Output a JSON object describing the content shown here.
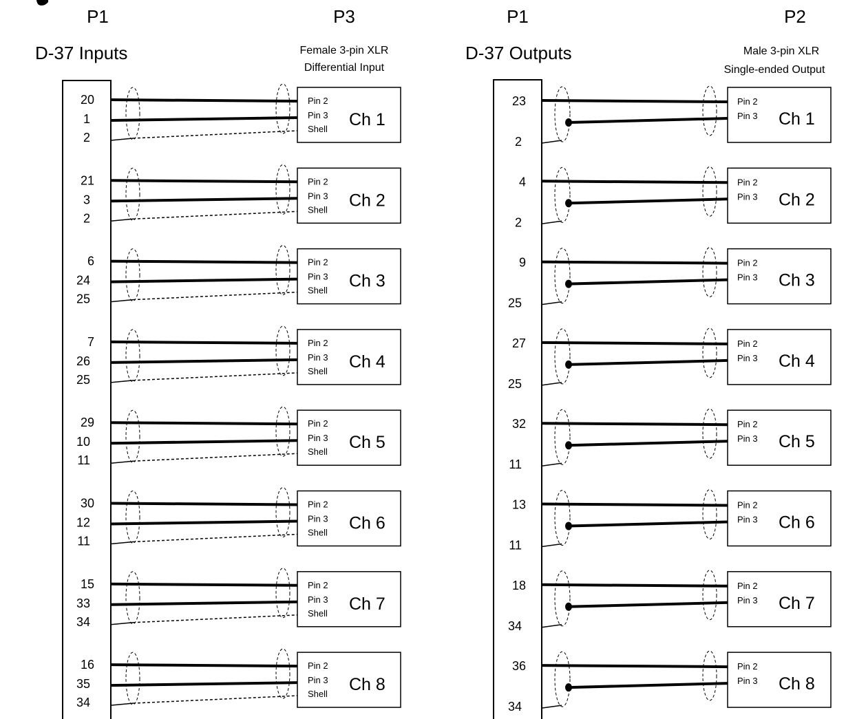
{
  "header": {
    "left_p1": "P1",
    "p3": "P3",
    "right_p1": "P1",
    "p2": "P2",
    "inputs_title": "D-37 Inputs",
    "outputs_title": "D-37 Outputs",
    "female_line1": "Female 3-pin XLR",
    "female_line2": "Differential Input",
    "male_line1": "Male 3-pin XLR",
    "male_line2": "Single-ended Output"
  },
  "inputs": [
    {
      "pins": [
        "20",
        "1",
        "2"
      ],
      "xlr": [
        "Pin 2",
        "Pin 3",
        "Shell"
      ],
      "channel": "Ch 1"
    },
    {
      "pins": [
        "21",
        "3",
        "2"
      ],
      "xlr": [
        "Pin 2",
        "Pin 3",
        "Shell"
      ],
      "channel": "Ch 2"
    },
    {
      "pins": [
        "6",
        "24",
        "25"
      ],
      "xlr": [
        "Pin 2",
        "Pin 3",
        "Shell"
      ],
      "channel": "Ch 3"
    },
    {
      "pins": [
        "7",
        "26",
        "25"
      ],
      "xlr": [
        "Pin 2",
        "Pin 3",
        "Shell"
      ],
      "channel": "Ch 4"
    },
    {
      "pins": [
        "29",
        "10",
        "11"
      ],
      "xlr": [
        "Pin 2",
        "Pin 3",
        "Shell"
      ],
      "channel": "Ch 5"
    },
    {
      "pins": [
        "30",
        "12",
        "11"
      ],
      "xlr": [
        "Pin 2",
        "Pin 3",
        "Shell"
      ],
      "channel": "Ch 6"
    },
    {
      "pins": [
        "15",
        "33",
        "34"
      ],
      "xlr": [
        "Pin 2",
        "Pin 3",
        "Shell"
      ],
      "channel": "Ch 7"
    },
    {
      "pins": [
        "16",
        "35",
        "34"
      ],
      "xlr": [
        "Pin 2",
        "Pin 3",
        "Shell"
      ],
      "channel": "Ch 8"
    }
  ],
  "outputs": [
    {
      "pins": [
        "23",
        "2"
      ],
      "xlr": [
        "Pin 2",
        "Pin 3"
      ],
      "channel": "Ch 1"
    },
    {
      "pins": [
        "4",
        "2"
      ],
      "xlr": [
        "Pin 2",
        "Pin 3"
      ],
      "channel": "Ch 2"
    },
    {
      "pins": [
        "9",
        "25"
      ],
      "xlr": [
        "Pin 2",
        "Pin 3"
      ],
      "channel": "Ch 3"
    },
    {
      "pins": [
        "27",
        "25"
      ],
      "xlr": [
        "Pin 2",
        "Pin 3"
      ],
      "channel": "Ch 4"
    },
    {
      "pins": [
        "32",
        "11"
      ],
      "xlr": [
        "Pin 2",
        "Pin 3"
      ],
      "channel": "Ch 5"
    },
    {
      "pins": [
        "13",
        "11"
      ],
      "xlr": [
        "Pin 2",
        "Pin 3"
      ],
      "channel": "Ch 6"
    },
    {
      "pins": [
        "18",
        "34"
      ],
      "xlr": [
        "Pin 2",
        "Pin 3"
      ],
      "channel": "Ch 7"
    },
    {
      "pins": [
        "36",
        "34"
      ],
      "xlr": [
        "Pin 2",
        "Pin 3"
      ],
      "channel": "Ch 8"
    }
  ]
}
